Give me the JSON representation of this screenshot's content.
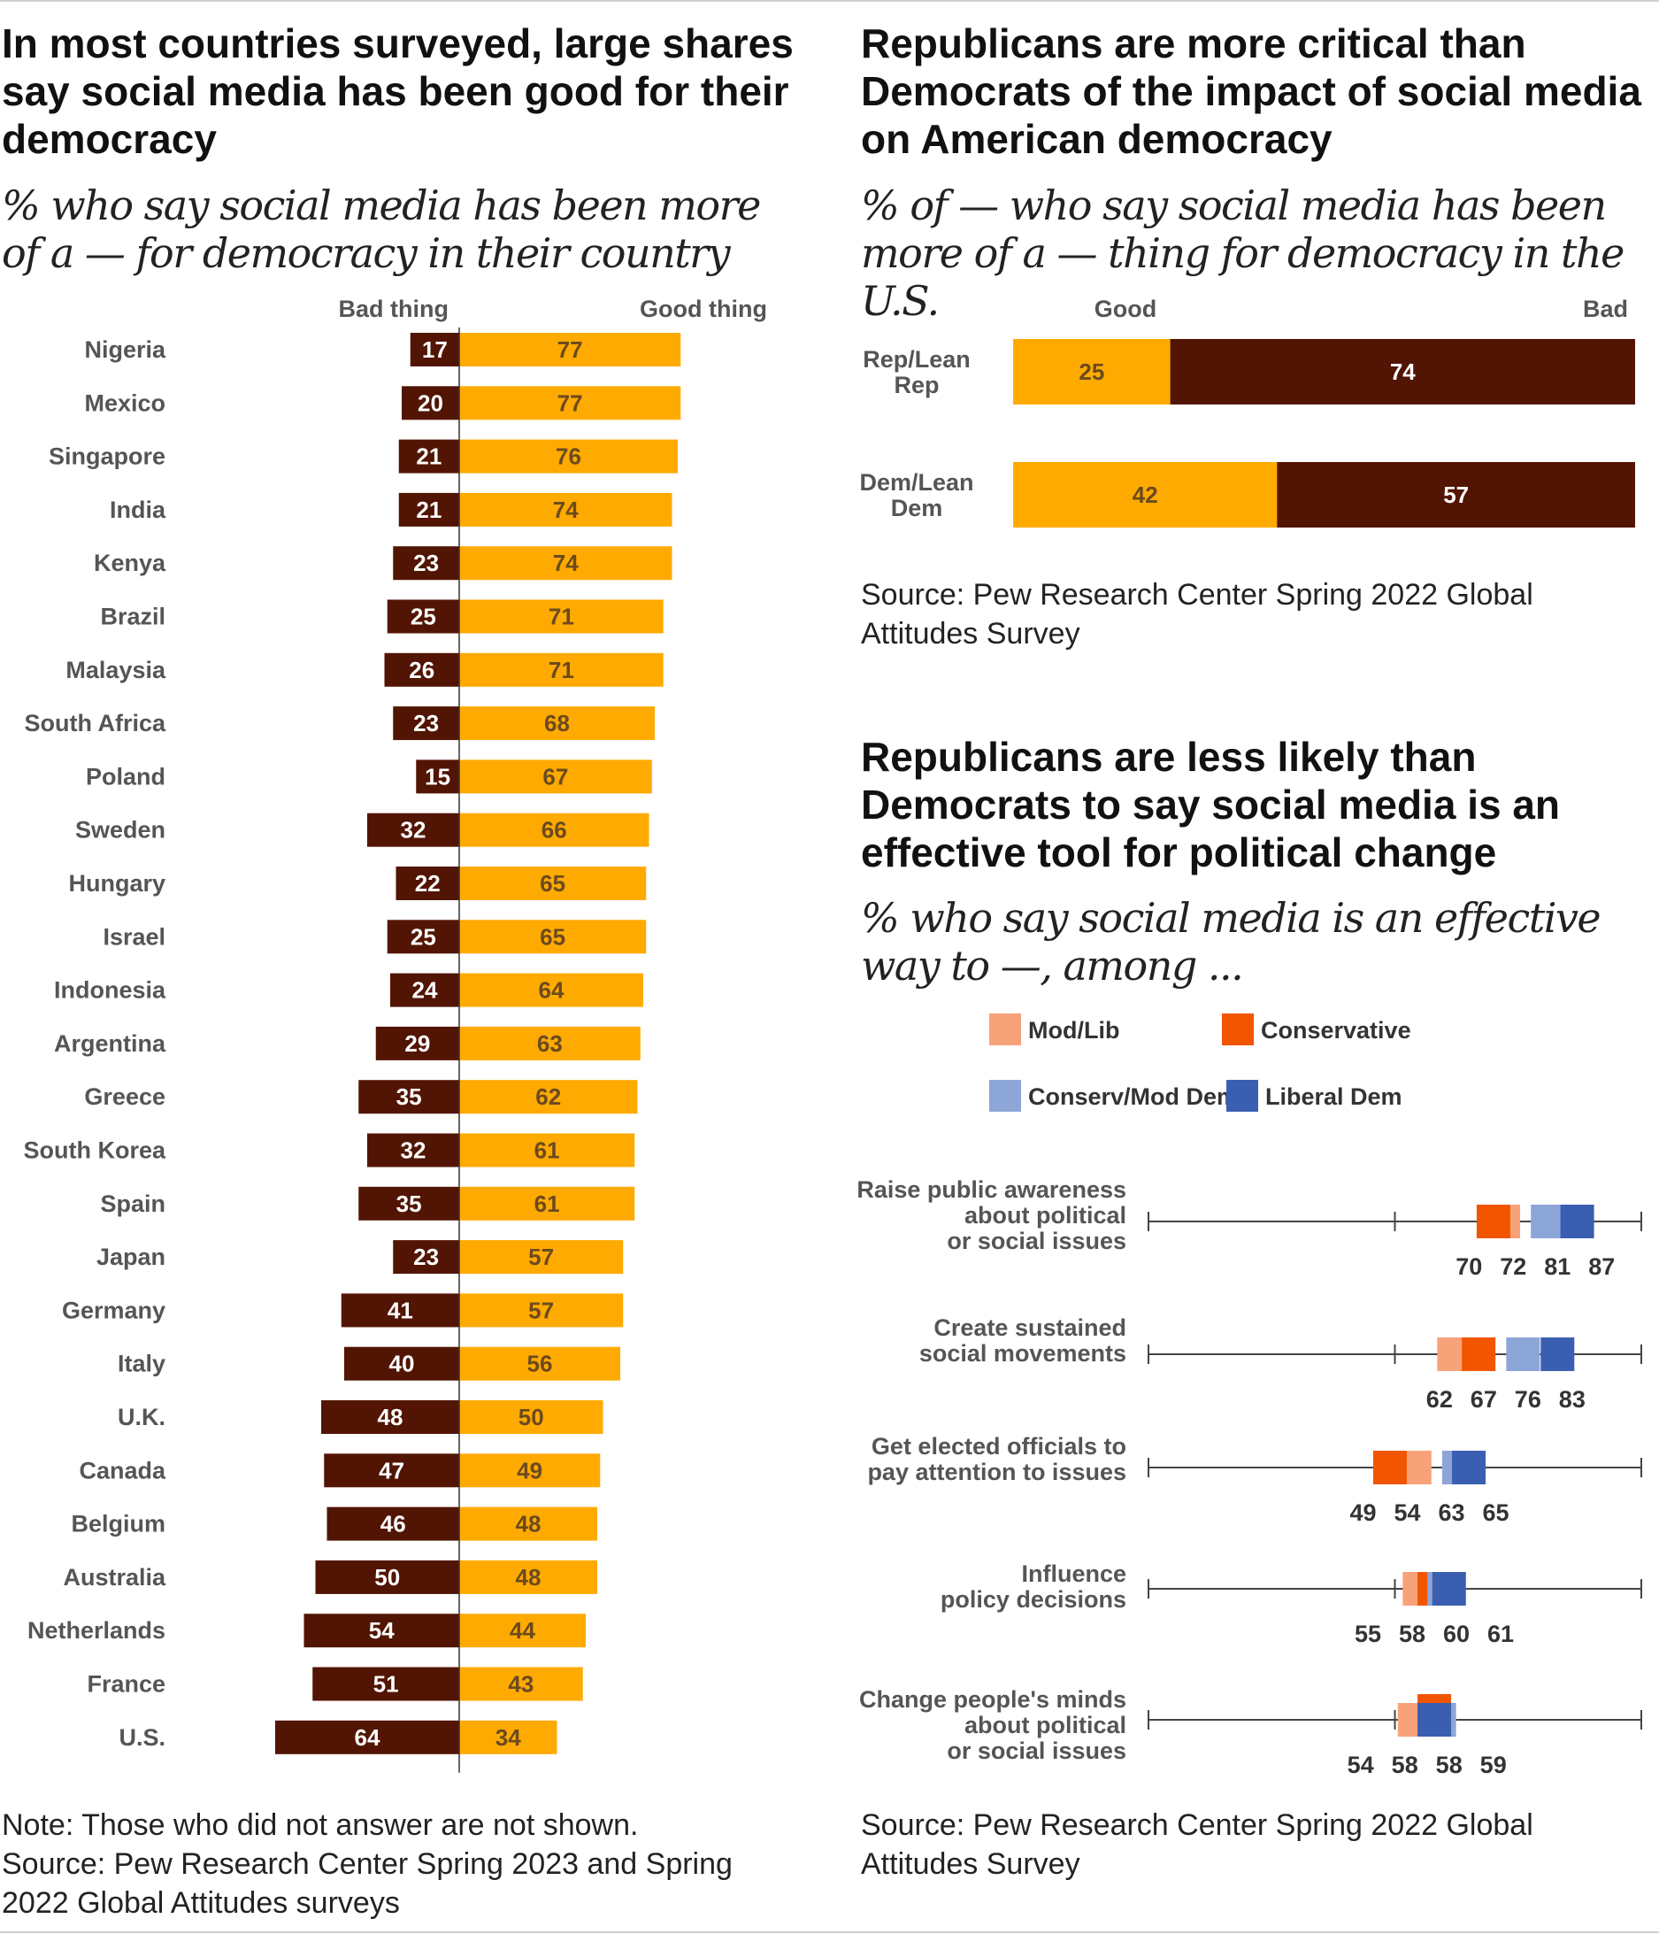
{
  "left": {
    "title": "In most countries surveyed, large shares say social media has been good for their democracy",
    "subtitle": "% who say social media has been more of a — for democracy in their country",
    "note": "Note: Those who did not answer are not shown.",
    "source": "Source: Pew Research Center Spring 2023 and Spring 2022 Global Attitudes surveys"
  },
  "top_right": {
    "title": "Republicans are more critical than Democrats of the impact of social media on American democracy",
    "subtitle": "% of — who say social media has been more of a — thing for democracy in the U.S.",
    "source": "Source: Pew Research Center Spring 2022 Global Attitudes Survey"
  },
  "bottom_right": {
    "title": "Republicans are less likely than Democrats to say social media is an effective tool for political change",
    "subtitle": "% who say social media is an effective way to —, among ...",
    "source": "Source: Pew Research Center Spring 2022 Global Attitudes Survey"
  },
  "colors": {
    "good": "#ffaa00",
    "bad": "#521503",
    "mod_lib": "#f8a27a",
    "conservative": "#f25500",
    "conserv_mod_dem": "#8da6d8",
    "liberal_dem": "#3a5fb0"
  },
  "chart_data": [
    {
      "type": "bar",
      "orientation": "diverging-horizontal",
      "legend": [
        "Bad thing",
        "Good thing"
      ],
      "categories": [
        "Nigeria",
        "Mexico",
        "Singapore",
        "India",
        "Kenya",
        "Brazil",
        "Malaysia",
        "South Africa",
        "Poland",
        "Sweden",
        "Hungary",
        "Israel",
        "Indonesia",
        "Argentina",
        "Greece",
        "South Korea",
        "Spain",
        "Japan",
        "Germany",
        "Italy",
        "U.K.",
        "Canada",
        "Belgium",
        "Australia",
        "Netherlands",
        "France",
        "U.S."
      ],
      "series": [
        {
          "name": "Bad thing",
          "values": [
            17,
            20,
            21,
            21,
            23,
            25,
            26,
            23,
            15,
            32,
            22,
            25,
            24,
            29,
            35,
            32,
            35,
            23,
            41,
            40,
            48,
            47,
            46,
            50,
            54,
            51,
            64
          ]
        },
        {
          "name": "Good thing",
          "values": [
            77,
            77,
            76,
            74,
            74,
            71,
            71,
            68,
            67,
            66,
            65,
            65,
            64,
            63,
            62,
            61,
            61,
            57,
            57,
            56,
            50,
            49,
            48,
            48,
            44,
            43,
            34
          ]
        }
      ],
      "xlim": [
        0,
        100
      ]
    },
    {
      "type": "bar",
      "orientation": "stacked-horizontal",
      "legend": [
        "Good",
        "Bad"
      ],
      "categories": [
        "Rep/Lean Rep",
        "Dem/Lean Dem"
      ],
      "series": [
        {
          "name": "Good",
          "values": [
            25,
            42
          ]
        },
        {
          "name": "Bad",
          "values": [
            74,
            57
          ]
        }
      ],
      "xlim": [
        0,
        100
      ]
    },
    {
      "type": "scatter",
      "orientation": "dot-plot",
      "legend": [
        "Mod/Lib",
        "Conservative",
        "Conserv/Mod Dem",
        "Liberal Dem"
      ],
      "categories": [
        "Raise public awareness about political or social issues",
        "Create sustained social movements",
        "Get elected officials to pay attention to issues",
        "Influence policy decisions",
        "Change people's minds about political or social issues"
      ],
      "category_lines": [
        [
          "Raise public awareness",
          "about political",
          "or social issues"
        ],
        [
          "Create sustained",
          "social movements"
        ],
        [
          "Get elected officials to",
          "pay attention to issues"
        ],
        [
          "Influence",
          "policy decisions"
        ],
        [
          "Change people's minds",
          "about political",
          "or social issues"
        ]
      ],
      "series": [
        {
          "name": "Mod/Lib",
          "values": [
            72,
            62,
            54,
            55,
            54
          ]
        },
        {
          "name": "Conservative",
          "values": [
            70,
            67,
            49,
            58,
            58
          ]
        },
        {
          "name": "Conserv/Mod Dem",
          "values": [
            81,
            76,
            63,
            60,
            59
          ]
        },
        {
          "name": "Liberal Dem",
          "values": [
            87,
            83,
            65,
            61,
            58
          ]
        }
      ],
      "value_labels": [
        [
          "70",
          "72",
          "81",
          "87"
        ],
        [
          "62",
          "67",
          "76",
          "83"
        ],
        [
          "49",
          "54",
          "63",
          "65"
        ],
        [
          "55",
          "58",
          "60",
          "61"
        ],
        [
          "54",
          "58",
          "58",
          "59"
        ]
      ],
      "xlim": [
        0,
        100
      ]
    }
  ]
}
